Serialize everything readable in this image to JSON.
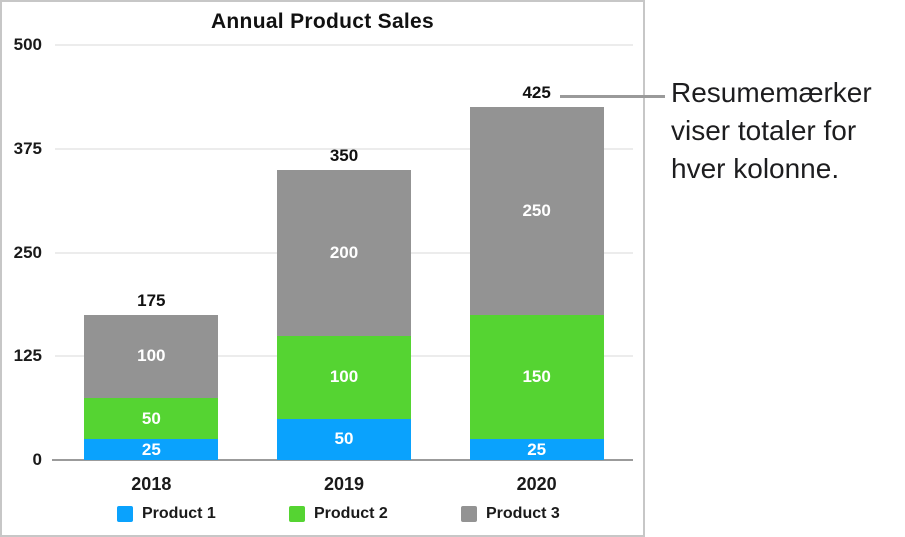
{
  "chart_data": {
    "type": "bar",
    "stacked": true,
    "title": "Annual Product Sales",
    "categories": [
      "2018",
      "2019",
      "2020"
    ],
    "series": [
      {
        "name": "Product 1",
        "color": "#0aa2fd",
        "values": [
          25,
          50,
          25
        ]
      },
      {
        "name": "Product 2",
        "color": "#55d432",
        "values": [
          50,
          100,
          150
        ]
      },
      {
        "name": "Product 3",
        "color": "#939393",
        "values": [
          100,
          200,
          250
        ]
      }
    ],
    "totals": [
      175,
      350,
      425
    ],
    "y_ticks": [
      0,
      125,
      250,
      375,
      500
    ],
    "ylim": [
      0,
      500
    ],
    "grid": true,
    "legend_position": "bottom",
    "value_labels": "inside-white",
    "total_labels": "above-bars"
  },
  "callout": {
    "lines": [
      "Resumemærker",
      "viser totaler for",
      "hver kolonne."
    ],
    "full_text": "Resumemærker viser totaler for hver kolonne.",
    "line_color": "#9a9a9a"
  },
  "panel": {
    "border_color": "#c7c7c7",
    "background": "#ffffff",
    "grid_color": "#ececec",
    "axis_color": "#9b9b9b"
  }
}
